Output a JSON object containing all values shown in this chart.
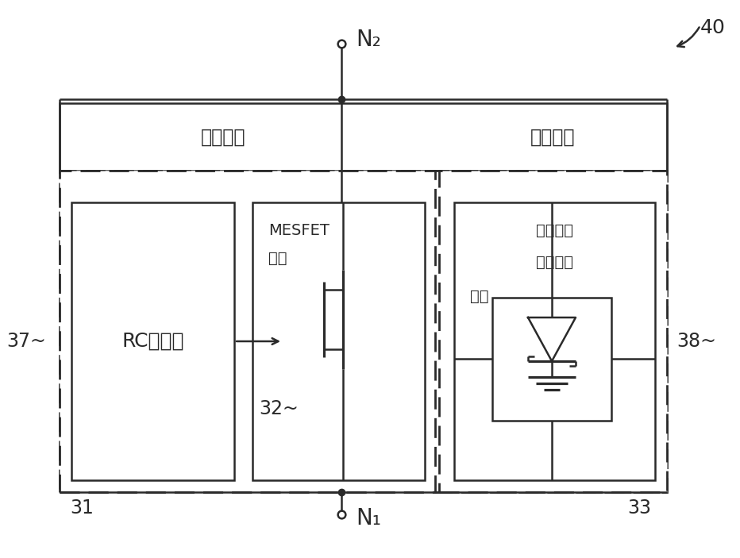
{
  "bg_color": "#ffffff",
  "line_color": "#2a2a2a",
  "fig_width": 9.32,
  "fig_height": 7.03,
  "dpi": 100,
  "label_40": "40",
  "label_37": "37",
  "label_38": "38",
  "label_31": "31",
  "label_32": "32",
  "label_33": "33",
  "label_N1": "N₁",
  "label_N2": "N₂",
  "text_forward": "前向保护",
  "text_reverse": "逆向保护",
  "text_rc": "RC触发器",
  "text_mesfet": "MESFET",
  "text_clamp": "钓位",
  "text_schottky1": "肖特基栊",
  "text_schottky2": "极二极管",
  "text_structure": "结构"
}
